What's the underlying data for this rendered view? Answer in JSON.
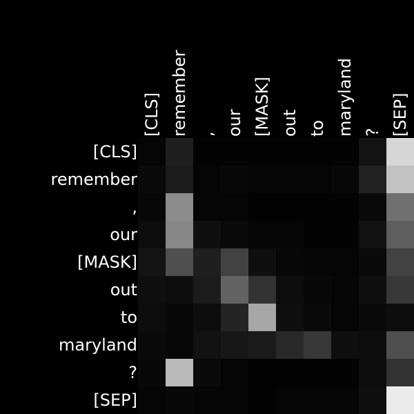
{
  "chart_data": {
    "type": "heatmap",
    "tokens": [
      "[CLS]",
      "remember",
      ",",
      "our",
      "[MASK]",
      "out",
      "to",
      "maryland",
      "?",
      "[SEP]"
    ],
    "x_labels": [
      "[CLS]",
      "remember",
      ",",
      "our",
      "[MASK]",
      "out",
      "to",
      "maryland",
      "?",
      "[SEP]"
    ],
    "y_labels": [
      "[CLS]",
      "remember",
      ",",
      "our",
      "[MASK]",
      "out",
      "to",
      "maryland",
      "?",
      "[SEP]"
    ],
    "colormap": "grayscale",
    "value_range": [
      0,
      1
    ],
    "values": [
      [
        0.02,
        0.12,
        0.01,
        0.01,
        0.01,
        0.01,
        0.01,
        0.01,
        0.08,
        0.84
      ],
      [
        0.04,
        0.11,
        0.02,
        0.03,
        0.02,
        0.02,
        0.02,
        0.03,
        0.13,
        0.76
      ],
      [
        0.03,
        0.55,
        0.02,
        0.02,
        0.01,
        0.01,
        0.01,
        0.01,
        0.04,
        0.44
      ],
      [
        0.05,
        0.53,
        0.06,
        0.04,
        0.02,
        0.02,
        0.01,
        0.01,
        0.07,
        0.37
      ],
      [
        0.08,
        0.31,
        0.12,
        0.26,
        0.06,
        0.03,
        0.02,
        0.02,
        0.04,
        0.26
      ],
      [
        0.06,
        0.05,
        0.11,
        0.39,
        0.2,
        0.05,
        0.03,
        0.02,
        0.06,
        0.22
      ],
      [
        0.05,
        0.03,
        0.05,
        0.14,
        0.65,
        0.06,
        0.04,
        0.02,
        0.04,
        0.05
      ],
      [
        0.04,
        0.03,
        0.07,
        0.09,
        0.1,
        0.16,
        0.22,
        0.06,
        0.05,
        0.31
      ],
      [
        0.03,
        0.73,
        0.04,
        0.02,
        0.01,
        0.01,
        0.01,
        0.01,
        0.05,
        0.2
      ],
      [
        0.02,
        0.03,
        0.02,
        0.02,
        0.01,
        0.02,
        0.02,
        0.02,
        0.06,
        0.92
      ]
    ]
  }
}
